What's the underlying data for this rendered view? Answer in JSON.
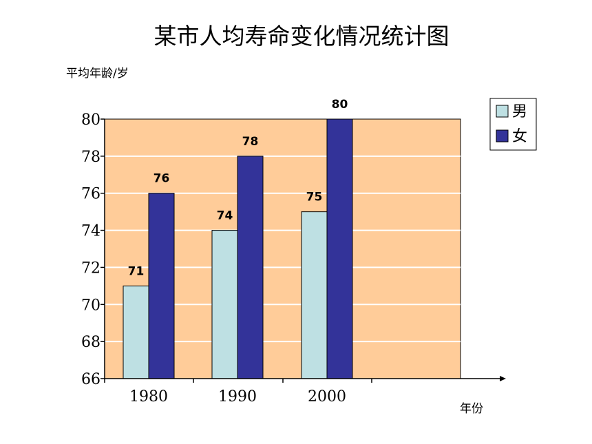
{
  "chart_data": {
    "type": "bar",
    "title": "某市人均寿命变化情况统计图",
    "ylabel": "平均年龄/岁",
    "xlabel": "年份",
    "categories": [
      "1980",
      "1990",
      "2000"
    ],
    "ylim": [
      66,
      80
    ],
    "yticks": [
      "66",
      "68",
      "70",
      "72",
      "74",
      "76",
      "78",
      "80"
    ],
    "grid": true,
    "legend_position": "top-right",
    "series": [
      {
        "name": "男",
        "values": [
          71,
          74,
          75
        ],
        "labels": [
          "71",
          "74",
          "75"
        ],
        "color": "#BEE0E3"
      },
      {
        "name": "女",
        "values": [
          76,
          78,
          80
        ],
        "labels": [
          "76",
          "78",
          "80"
        ],
        "color": "#333399"
      }
    ],
    "plot_background": "#FFCC99",
    "gridline_color": "#FFFFFF"
  }
}
